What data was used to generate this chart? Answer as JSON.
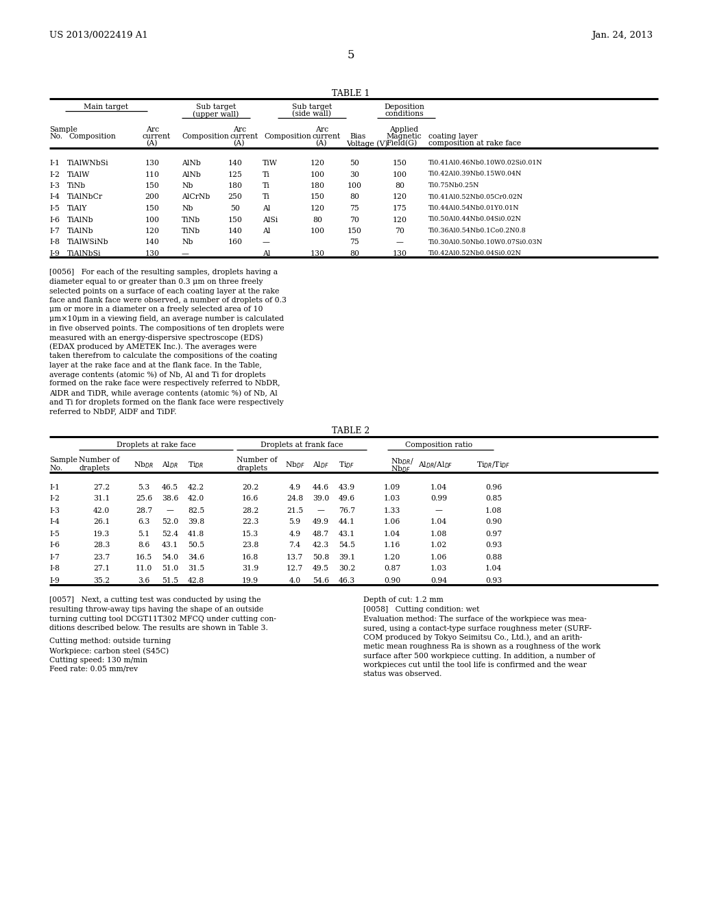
{
  "header_left": "US 2013/0022419 A1",
  "header_right": "Jan. 24, 2013",
  "page_number": "5",
  "table1_title": "TABLE 1",
  "table2_title": "TABLE 2",
  "table1_data": [
    [
      "I-1",
      "TiAlWNbSi",
      "130",
      "AlNb",
      "140",
      "TiW",
      "120",
      "50",
      "150",
      "Ti0.41Al0.46Nb0.10W0.02Si0.01N"
    ],
    [
      "I-2",
      "TiAlW",
      "110",
      "AlNb",
      "125",
      "Ti",
      "100",
      "30",
      "100",
      "Ti0.42Al0.39Nb0.15W0.04N"
    ],
    [
      "I-3",
      "TiNb",
      "150",
      "Nb",
      "180",
      "Ti",
      "180",
      "100",
      "80",
      "Ti0.75Nb0.25N"
    ],
    [
      "I-4",
      "TiAlNbCr",
      "200",
      "AlCrNb",
      "250",
      "Ti",
      "150",
      "80",
      "120",
      "Ti0.41Al0.52Nb0.05Cr0.02N"
    ],
    [
      "I-5",
      "TiAlY",
      "150",
      "Nb",
      "50",
      "Al",
      "120",
      "75",
      "175",
      "Ti0.44Al0.54Nb0.01Y0.01N"
    ],
    [
      "I-6",
      "TiAlNb",
      "100",
      "TiNb",
      "150",
      "AlSi",
      "80",
      "70",
      "120",
      "Ti0.50Al0.44Nb0.04Si0.02N"
    ],
    [
      "I-7",
      "TiAlNb",
      "120",
      "TiNb",
      "140",
      "Al",
      "100",
      "150",
      "70",
      "Ti0.36Al0.54Nb0.1Co0.2N0.8"
    ],
    [
      "I-8",
      "TiAlWSiNb",
      "140",
      "Nb",
      "160",
      "—",
      "",
      "75",
      "—",
      "Ti0.30Al0.50Nb0.10W0.07Si0.03N"
    ],
    [
      "I-9",
      "TiAlNbSi",
      "130",
      "—",
      "",
      "Al",
      "130",
      "80",
      "130",
      "Ti0.42Al0.52Nb0.04Si0.02N"
    ]
  ],
  "table2_data": [
    [
      "I-1",
      "27.2",
      "5.3",
      "46.5",
      "42.2",
      "20.2",
      "4.9",
      "44.6",
      "43.9",
      "1.09",
      "1.04",
      "0.96"
    ],
    [
      "I-2",
      "31.1",
      "25.6",
      "38.6",
      "42.0",
      "16.6",
      "24.8",
      "39.0",
      "49.6",
      "1.03",
      "0.99",
      "0.85"
    ],
    [
      "I-3",
      "42.0",
      "28.7",
      "—",
      "82.5",
      "28.2",
      "21.5",
      "—",
      "76.7",
      "1.33",
      "—",
      "1.08"
    ],
    [
      "I-4",
      "26.1",
      "6.3",
      "52.0",
      "39.8",
      "22.3",
      "5.9",
      "49.9",
      "44.1",
      "1.06",
      "1.04",
      "0.90"
    ],
    [
      "I-5",
      "19.3",
      "5.1",
      "52.4",
      "41.8",
      "15.3",
      "4.9",
      "48.7",
      "43.1",
      "1.04",
      "1.08",
      "0.97"
    ],
    [
      "I-6",
      "28.3",
      "8.6",
      "43.1",
      "50.5",
      "23.8",
      "7.4",
      "42.3",
      "54.5",
      "1.16",
      "1.02",
      "0.93"
    ],
    [
      "I-7",
      "23.7",
      "16.5",
      "54.0",
      "34.6",
      "16.8",
      "13.7",
      "50.8",
      "39.1",
      "1.20",
      "1.06",
      "0.88"
    ],
    [
      "I-8",
      "27.1",
      "11.0",
      "51.0",
      "31.5",
      "31.9",
      "12.7",
      "49.5",
      "30.2",
      "0.87",
      "1.03",
      "1.04"
    ],
    [
      "I-9",
      "35.2",
      "3.6",
      "51.5",
      "42.8",
      "19.9",
      "4.0",
      "54.6",
      "46.3",
      "0.90",
      "0.94",
      "0.93"
    ]
  ],
  "para56_lines": [
    "[0056]   For each of the resulting samples, droplets having a",
    "diameter equal to or greater than 0.3 μm on three freely",
    "selected points on a surface of each coating layer at the rake",
    "face and flank face were observed, a number of droplets of 0.3",
    "μm or more in a diameter on a freely selected area of 10",
    "μm×10μm in a viewing field, an average number is calculated",
    "in five observed points. The compositions of ten droplets were",
    "measured with an energy-dispersive spectroscope (EDS)",
    "(EDAX produced by AMETEK Inc.). The averages were",
    "taken therefrom to calculate the compositions of the coating",
    "layer at the rake face and at the flank face. In the Table,",
    "average contents (atomic %) of Nb, Al and Ti for droplets",
    "formed on the rake face were respectively referred to Nb$_{DR}$,",
    "Al$_{DR}$ and Ti$_{DR}$, while average contents (atomic %) of Nb, Al",
    "and Ti for droplets formed on the flank face were respectively",
    "referred to Nb$_{DF}$, Al$_{DF}$ and Ti$_{DF}$."
  ],
  "para57_lines": [
    "[0057]   Next, a cutting test was conducted by using the",
    "resulting throw-away tips having the shape of an outside",
    "turning cutting tool DCGT11T302 MFCQ under cutting con-",
    "ditions described below. The results are shown in Table 3."
  ],
  "cutting_conditions": [
    "Cutting method: outside turning",
    "Workpiece: carbon steel (S45C)",
    "Cutting speed: 130 m/min",
    "Feed rate: 0.05 mm/rev"
  ],
  "depth_of_cut": "Depth of cut: 1.2 mm",
  "para58_lines": [
    "[0058]   Cutting condition: wet",
    "Evaluation method: The surface of the workpiece was mea-",
    "sured, using a contact-type surface roughness meter (SURF-",
    "COM produced by Tokyo Seimitsu Co., Ltd.), and an arith-",
    "metic mean roughness Ra is shown as a roughness of the work",
    "surface after 500 workpiece cutting. In addition, a number of",
    "workpieces cut until the tool life is confirmed and the wear",
    "status was observed."
  ]
}
